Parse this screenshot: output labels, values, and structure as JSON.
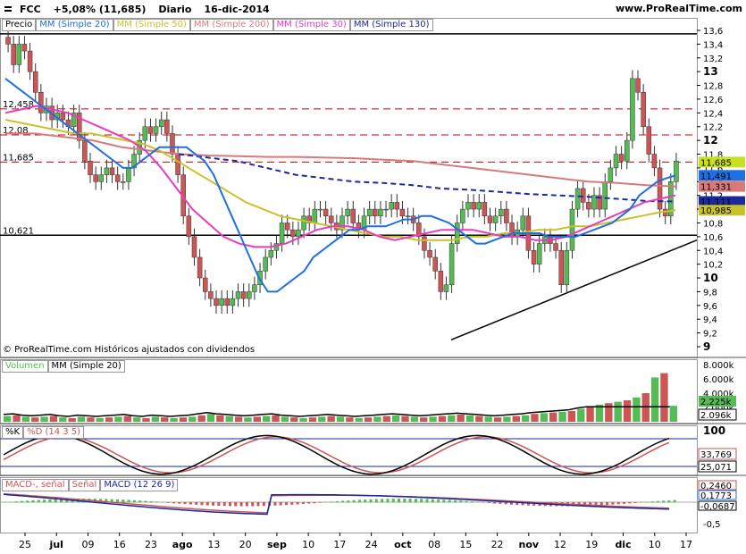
{
  "header": {
    "symbol": "FCC",
    "change": "+5,08% (11,685)",
    "period": "Diario",
    "date": "16-dic-2014",
    "site": "www.ProRealTime.com"
  },
  "legend": {
    "price": "Precio",
    "sma20": "MM (Simple 20)",
    "sma50": "MM (Simple 50)",
    "sma200": "MM (Simple 200)",
    "sma30": "MM (Simple 30)",
    "sma130": "MM (Simple 130)"
  },
  "copyright": "© ProRealTime.com  Históricos ajustados con dividendos",
  "volume_legend": {
    "vol": "Volumen",
    "mm": "MM (Simple 20)"
  },
  "stoch_legend": {
    "k": "%K",
    "d": "%D (14 3 5)"
  },
  "macd_legend": {
    "hist": "MACD-, señal",
    "signal": "Señal",
    "macd": "MACD (12 26 9)"
  },
  "colors": {
    "up": "#55bb55",
    "down": "#cc5555",
    "sma20": "#1f6fe0",
    "sma50": "#c8c22a",
    "sma200": "#d97a7a",
    "sma30": "#e83cc0",
    "sma130": "#1a2a9e",
    "hline_red": "#cc0000",
    "black": "#000000"
  },
  "chart_data": [
    {
      "type": "candlestick",
      "name": "price",
      "ylim": [
        9,
        13.6
      ],
      "y_ticks": [
        "13,6",
        "13,4",
        "13,2",
        "13",
        "12,8",
        "12,6",
        "12,4",
        "12,2",
        "12",
        "11,8",
        "11,6",
        "11,4",
        "11,2",
        "11",
        "10,8",
        "10,6",
        "10,4",
        "10,2",
        "10",
        "9,8",
        "9,6",
        "9,4",
        "9,2",
        "9"
      ],
      "x_ticks": [
        "25",
        "jul",
        "09",
        "16",
        "23",
        "ago",
        "13",
        "20",
        "sep",
        "10",
        "17",
        "24",
        "oct",
        "08",
        "15",
        "22",
        "nov",
        "12",
        "19",
        "dic",
        "10",
        "17"
      ],
      "h_lines": [
        {
          "value": 12.458,
          "label": "12,458",
          "style": "dashed-red"
        },
        {
          "value": 12.08,
          "label": "12,08",
          "style": "dashed-red"
        },
        {
          "value": 11.685,
          "label": "11,685",
          "style": "dashed-red"
        },
        {
          "value": 10.621,
          "label": "10,621",
          "style": "solid-black"
        },
        {
          "value": 13.55,
          "label": "",
          "style": "solid-black"
        }
      ],
      "value_tags": [
        {
          "value": 11.685,
          "label": "11,685",
          "color": "#c8e020"
        },
        {
          "value": 11.491,
          "label": "11,491",
          "color": "#1f6fe0"
        },
        {
          "value": 11.331,
          "label": "11,331",
          "color": "#d97a7a"
        },
        {
          "value": 11.111,
          "label": "11,111",
          "color": "#1a2a9e"
        },
        {
          "value": 10.985,
          "label": "10,985",
          "color": "#c8c22a"
        }
      ],
      "closes": [
        13.4,
        13.1,
        13.4,
        13.3,
        13.0,
        12.7,
        12.4,
        12.5,
        12.3,
        12.4,
        12.3,
        12.2,
        12.4,
        12.0,
        11.7,
        11.5,
        11.4,
        11.5,
        11.6,
        11.5,
        11.4,
        11.4,
        11.6,
        11.8,
        12.0,
        12.2,
        12.1,
        12.2,
        12.3,
        12.1,
        11.8,
        11.5,
        10.9,
        10.6,
        10.3,
        10.0,
        9.8,
        9.7,
        9.6,
        9.7,
        9.6,
        9.7,
        9.8,
        9.7,
        9.8,
        9.9,
        10.1,
        10.3,
        10.4,
        10.5,
        10.8,
        10.7,
        10.6,
        10.7,
        10.9,
        10.8,
        11.0,
        11.0,
        10.9,
        10.8,
        10.7,
        10.9,
        11.0,
        10.8,
        10.7,
        10.9,
        11.0,
        10.9,
        11.0,
        11.0,
        11.1,
        11.0,
        10.9,
        10.9,
        10.8,
        10.6,
        10.4,
        10.3,
        10.1,
        9.8,
        9.9,
        10.5,
        10.8,
        11.0,
        11.1,
        11.0,
        11.1,
        10.9,
        10.8,
        10.9,
        11.0,
        10.8,
        10.6,
        10.7,
        10.9,
        10.4,
        10.2,
        10.5,
        10.6,
        10.5,
        10.4,
        9.9,
        10.4,
        11.0,
        11.3,
        11.1,
        11.0,
        11.2,
        11.0,
        11.4,
        11.6,
        11.8,
        11.7,
        12.0,
        12.9,
        12.7,
        12.2,
        11.8,
        11.6,
        11.0,
        10.9,
        11.4,
        11.7
      ],
      "sma20": [
        12.9,
        12.8,
        12.7,
        12.6,
        12.5,
        12.4,
        12.3,
        12.2,
        12.1,
        12.0,
        11.9,
        11.8,
        11.7,
        11.6,
        11.6,
        11.7,
        11.8,
        11.9,
        11.9,
        11.9,
        11.9,
        11.8,
        11.7,
        11.5,
        11.2,
        10.9,
        10.6,
        10.3,
        10.0,
        9.8,
        9.8,
        9.9,
        10.0,
        10.1,
        10.3,
        10.4,
        10.5,
        10.6,
        10.7,
        10.7,
        10.75,
        10.75,
        10.75,
        10.8,
        10.85,
        10.85,
        10.9,
        10.9,
        10.85,
        10.8,
        10.7,
        10.6,
        10.5,
        10.5,
        10.55,
        10.6,
        10.65,
        10.65,
        10.65,
        10.65,
        10.6,
        10.6,
        10.6,
        10.6,
        10.65,
        10.7,
        10.75,
        10.8,
        10.9,
        11.0,
        11.2,
        11.3,
        11.4,
        11.45,
        11.491
      ],
      "sma50": [
        12.3,
        12.25,
        12.2,
        12.15,
        12.1,
        12.1,
        12.05,
        12.0,
        11.95,
        11.85,
        11.7,
        11.55,
        11.4,
        11.25,
        11.1,
        11.0,
        10.9,
        10.85,
        10.8,
        10.75,
        10.7,
        10.65,
        10.6,
        10.6,
        10.55,
        10.55,
        10.55,
        10.6,
        10.6,
        10.65,
        10.65,
        10.7,
        10.7,
        10.75,
        10.75,
        10.8,
        10.85,
        10.9,
        10.95,
        10.985
      ],
      "sma200": [
        12.1,
        12.1,
        12.05,
        12.0,
        11.9,
        11.85,
        11.8,
        11.78,
        11.77,
        11.76,
        11.76,
        11.75,
        11.74,
        11.72,
        11.7,
        11.65,
        11.6,
        11.55,
        11.5,
        11.45,
        11.4,
        11.38,
        11.35,
        11.331
      ],
      "sma30": [
        12.4,
        12.45,
        12.5,
        12.45,
        12.4,
        12.3,
        12.2,
        12.1,
        12.0,
        11.85,
        11.6,
        11.3,
        11.0,
        10.8,
        10.6,
        10.5,
        10.45,
        10.45,
        10.5,
        10.6,
        10.7,
        10.75,
        10.75,
        10.7,
        10.6,
        10.55,
        10.6,
        10.65,
        10.7,
        10.7,
        10.7,
        10.65,
        10.6,
        10.6,
        10.55,
        10.55,
        10.6,
        10.7,
        10.8,
        10.9,
        11.0,
        11.1,
        11.15,
        11.2
      ],
      "sma130": [
        11.8,
        11.75,
        11.7,
        11.6,
        11.5,
        11.45,
        11.4,
        11.38,
        11.35,
        11.3,
        11.28,
        11.25,
        11.22,
        11.2,
        11.18,
        11.15,
        11.12,
        11.111
      ]
    },
    {
      "type": "bar",
      "name": "volume",
      "ylim": [
        0,
        8000
      ],
      "y_ticks": [
        "8.000k",
        "6.000k",
        "4.000k",
        "2.000k"
      ],
      "value_tags": [
        {
          "label": "2.225k",
          "color": "#55bb55"
        },
        {
          "label": "2.096k",
          "color": "#000000"
        }
      ],
      "values": [
        800,
        900,
        700,
        600,
        700,
        800,
        600,
        500,
        700,
        600,
        500,
        600,
        700,
        800,
        600,
        500,
        700,
        600,
        500,
        600,
        700,
        900,
        1100,
        900,
        800,
        700,
        600,
        700,
        800,
        900,
        700,
        600,
        500,
        600,
        700,
        800,
        700,
        600,
        500,
        600,
        700,
        800,
        900,
        800,
        700,
        600,
        700,
        800,
        900,
        1000,
        900,
        800,
        700,
        600,
        700,
        800,
        900,
        1100,
        1200,
        1300,
        1400,
        1500,
        1800,
        2200,
        2400,
        2600,
        2800,
        3000,
        3400,
        4000,
        6200,
        6800,
        2225
      ]
    },
    {
      "type": "line",
      "name": "stochastic",
      "ylim": [
        0,
        100
      ],
      "y_ticks": [
        "100"
      ],
      "value_tags": [
        {
          "label": "33,769",
          "color": "#cc5555"
        },
        {
          "label": "25,071",
          "color": "#000000"
        }
      ]
    },
    {
      "type": "line",
      "name": "macd",
      "y_ticks": [
        "-0,5"
      ],
      "value_tags": [
        {
          "label": "0,2460",
          "color": "#cc5555"
        },
        {
          "label": "0,1773",
          "color": "#1f6fe0"
        },
        {
          "label": "-0,0687",
          "color": "#000000"
        }
      ]
    }
  ]
}
